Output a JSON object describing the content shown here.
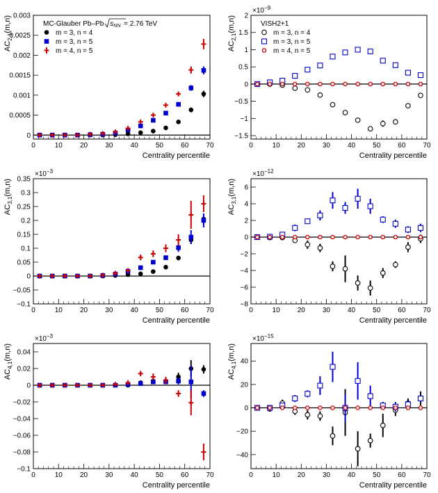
{
  "chart_data": [
    {
      "type": "scatter",
      "ylabel": "AC",
      "ylabel_sub": "2,1",
      "ylabel_suffix": "(m,n)",
      "xlabel": "Centrality percentile",
      "exponent": "",
      "xlim": [
        0,
        70
      ],
      "ylim": [
        -0.0001,
        0.003
      ],
      "yticks": [
        0,
        0.0005,
        0.001,
        0.0015,
        0.002,
        0.0025,
        0.003
      ],
      "ytick_labels": [
        "0",
        "0.0005",
        "0.001",
        "0.0015",
        "0.002",
        "0.0025",
        "0.003"
      ],
      "xticks": [
        0,
        10,
        20,
        30,
        40,
        50,
        60,
        70
      ],
      "xtick_labels": [
        "0",
        "10",
        "20",
        "30",
        "40",
        "50",
        "60",
        "70"
      ],
      "header": "MC-Glauber Pb–Pb",
      "energy_symbol": "s",
      "energy_sub": "NN",
      "energy_value": " = 2.76 TeV",
      "legend_position": "top-left",
      "x": [
        2.5,
        7.5,
        12.5,
        17.5,
        22.5,
        27.5,
        32.5,
        37.5,
        42.5,
        47.5,
        52.5,
        57.5,
        62.5,
        67.5
      ],
      "series": [
        {
          "name": "m = 3, n = 4",
          "marker": "filled-circle",
          "color": "#000000",
          "values": [
            0,
            0,
            0,
            0,
            0,
            0,
            1e-05,
            3e-05,
            6e-05,
            0.0001,
            0.00018,
            0.00033,
            0.00063,
            0.00103
          ],
          "errors": [
            0,
            0,
            0,
            0,
            0,
            0,
            0,
            0,
            0,
            0,
            0,
            3e-05,
            6e-05,
            8e-05
          ]
        },
        {
          "name": "m = 3, n = 5",
          "marker": "filled-square",
          "color": "#0000cc",
          "values": [
            0,
            0,
            0,
            0,
            1e-05,
            2e-05,
            5e-05,
            0.00013,
            0.00023,
            0.00037,
            0.00055,
            0.00077,
            0.00118,
            0.00162
          ],
          "errors": [
            0,
            0,
            0,
            0,
            0,
            0,
            0,
            0,
            1e-05,
            2e-05,
            3e-05,
            4e-05,
            7e-05,
            0.0001
          ]
        },
        {
          "name": "m = 4, n = 5",
          "marker": "cross",
          "color": "#cc0000",
          "values": [
            0,
            0,
            0,
            0,
            2e-05,
            4e-05,
            8e-05,
            0.00017,
            0.00033,
            0.0005,
            0.00075,
            0.00103,
            0.00163,
            0.00228
          ],
          "errors": [
            0,
            0,
            0,
            0,
            0,
            0,
            1e-05,
            1e-05,
            2e-05,
            3e-05,
            4e-05,
            5e-05,
            9e-05,
            0.00013
          ]
        }
      ]
    },
    {
      "type": "scatter",
      "ylabel": "AC",
      "ylabel_sub": "2,1",
      "ylabel_suffix": "(m,n)",
      "xlabel": "Centrality percentile",
      "exponent": "×10",
      "exponent_power": "−9",
      "xlim": [
        0,
        70
      ],
      "ylim": [
        -1.6,
        2
      ],
      "yticks": [
        -1.5,
        -1,
        -0.5,
        0,
        0.5,
        1,
        1.5,
        2
      ],
      "ytick_labels": [
        "−1.5",
        "−1",
        "−0.5",
        "0",
        "0.5",
        "1",
        "1.5",
        "2"
      ],
      "xticks": [
        0,
        10,
        20,
        30,
        40,
        50,
        60,
        70
      ],
      "xtick_labels": [
        "0",
        "10",
        "20",
        "30",
        "40",
        "50",
        "60",
        "70"
      ],
      "header": "VISH2+1",
      "legend_position": "top-left",
      "x": [
        2.5,
        7.5,
        12.5,
        17.5,
        22.5,
        27.5,
        32.5,
        37.5,
        42.5,
        47.5,
        52.5,
        57.5,
        62.5,
        67.5
      ],
      "series": [
        {
          "name": "m = 3, n = 4",
          "marker": "open-circle",
          "color": "#000000",
          "values": [
            0,
            0,
            -0.03,
            -0.12,
            -0.17,
            -0.32,
            -0.6,
            -0.83,
            -1.05,
            -1.3,
            -1.15,
            -1.1,
            -0.63,
            -0.33
          ],
          "errors": [
            0,
            0,
            0,
            0,
            0.03,
            0.03,
            0.04,
            0.07,
            0.05,
            0.07,
            0.09,
            0.05,
            0.03,
            0.02
          ]
        },
        {
          "name": "m = 3, n = 5",
          "marker": "open-square",
          "color": "#0000cc",
          "values": [
            0,
            0.05,
            0.1,
            0.24,
            0.42,
            0.54,
            0.8,
            0.92,
            1.0,
            0.95,
            0.68,
            0.55,
            0.33,
            0.26
          ],
          "errors": [
            0,
            0,
            0,
            0.02,
            0.02,
            0.03,
            0.04,
            0.04,
            0.07,
            0.07,
            0.03,
            0.04,
            0.03,
            0.02
          ]
        },
        {
          "name": "m = 4, n = 5",
          "marker": "open-cross",
          "color": "#cc0000",
          "values": [
            0,
            0,
            0,
            0,
            0,
            0,
            0,
            0,
            0,
            0,
            0,
            0,
            0,
            0
          ],
          "errors": [
            0,
            0,
            0,
            0,
            0,
            0,
            0,
            0,
            0,
            0,
            0,
            0,
            0,
            0
          ]
        }
      ]
    },
    {
      "type": "scatter",
      "ylabel": "AC",
      "ylabel_sub": "3,1",
      "ylabel_suffix": "(m,n)",
      "xlabel": "Centrality percentile",
      "exponent": "×10",
      "exponent_power": "−3",
      "xlim": [
        0,
        70
      ],
      "ylim": [
        -0.1,
        0.35
      ],
      "yticks": [
        -0.1,
        -0.05,
        0,
        0.05,
        0.1,
        0.15,
        0.2,
        0.25,
        0.3,
        0.35
      ],
      "ytick_labels": [
        "−0.1",
        "−0.05",
        "0",
        "0.05",
        "0.1",
        "0.15",
        "0.2",
        "0.25",
        "0.3",
        "0.35"
      ],
      "xticks": [
        0,
        10,
        20,
        30,
        40,
        50,
        60,
        70
      ],
      "xtick_labels": [
        "0",
        "10",
        "20",
        "30",
        "40",
        "50",
        "60",
        "70"
      ],
      "x": [
        2.5,
        7.5,
        12.5,
        17.5,
        22.5,
        27.5,
        32.5,
        37.5,
        42.5,
        47.5,
        52.5,
        57.5,
        62.5,
        67.5
      ],
      "series": [
        {
          "name": "m = 3, n = 4",
          "marker": "filled-circle",
          "color": "#000000",
          "values": [
            0,
            0,
            0,
            0,
            0,
            0,
            0.002,
            0.005,
            0.008,
            0.016,
            0.032,
            0.065,
            0.13,
            0.205
          ],
          "errors": [
            0,
            0,
            0,
            0,
            0,
            0,
            0,
            0,
            0,
            0,
            0.003,
            0.008,
            0.015,
            0.02
          ]
        },
        {
          "name": "m = 3, n = 5",
          "marker": "filled-square",
          "color": "#0000cc",
          "values": [
            0,
            0,
            0,
            0,
            0,
            0.002,
            0.007,
            0.017,
            0.03,
            0.05,
            0.066,
            0.102,
            0.14,
            0.2
          ],
          "errors": [
            0,
            0,
            0,
            0,
            0,
            0,
            0.002,
            0.003,
            0.004,
            0.006,
            0.008,
            0.015,
            0.025,
            0.025
          ]
        },
        {
          "name": "m = 4, n = 5",
          "marker": "cross",
          "color": "#cc0000",
          "values": [
            0,
            0,
            0,
            0,
            0,
            0.003,
            0.01,
            0.02,
            0.067,
            0.08,
            0.1,
            0.13,
            0.22,
            0.26
          ],
          "errors": [
            0,
            0,
            0,
            0,
            0,
            0.002,
            0.005,
            0.007,
            0.01,
            0.012,
            0.014,
            0.02,
            0.05,
            0.03
          ]
        }
      ]
    },
    {
      "type": "scatter",
      "ylabel": "AC",
      "ylabel_sub": "3,1",
      "ylabel_suffix": "(m,n)",
      "xlabel": "Centrality percentile",
      "exponent": "×10",
      "exponent_power": "−12",
      "xlim": [
        0,
        70
      ],
      "ylim": [
        -8,
        7
      ],
      "yticks": [
        -8,
        -6,
        -4,
        -2,
        0,
        2,
        4,
        6
      ],
      "ytick_labels": [
        "−8",
        "−6",
        "−4",
        "−2",
        "0",
        "2",
        "4",
        "6"
      ],
      "xticks": [
        0,
        10,
        20,
        30,
        40,
        50,
        60,
        70
      ],
      "xtick_labels": [
        "0",
        "10",
        "20",
        "30",
        "40",
        "50",
        "60",
        "70"
      ],
      "x": [
        2.5,
        7.5,
        12.5,
        17.5,
        22.5,
        27.5,
        32.5,
        37.5,
        42.5,
        47.5,
        52.5,
        57.5,
        62.5,
        67.5
      ],
      "series": [
        {
          "name": "m = 3, n = 4",
          "marker": "open-circle",
          "color": "#000000",
          "values": [
            0,
            -0.05,
            -0.05,
            -0.4,
            -0.9,
            -1.3,
            -3.5,
            -3.8,
            -5.5,
            -6.1,
            -4.3,
            -3.3,
            -1.2,
            -0.2
          ],
          "errors": [
            0,
            0,
            0,
            0.2,
            0.5,
            0.5,
            0.6,
            1.6,
            0.9,
            0.9,
            0.6,
            0.4,
            0.6,
            0.5
          ]
        },
        {
          "name": "m = 3, n = 5",
          "marker": "open-square",
          "color": "#0000cc",
          "values": [
            0,
            0.05,
            0.3,
            1.1,
            1.9,
            2.6,
            4.4,
            3.5,
            4.6,
            3.7,
            2.1,
            1.6,
            0.9,
            1.1
          ],
          "errors": [
            0,
            0,
            0.2,
            0.4,
            0.3,
            0.6,
            1.0,
            0.7,
            1.2,
            0.9,
            0.4,
            0.5,
            0.4,
            0.5
          ]
        },
        {
          "name": "m = 4, n = 5",
          "marker": "open-cross",
          "color": "#cc0000",
          "values": [
            0,
            0,
            0,
            0,
            0,
            0,
            0,
            0,
            0,
            0,
            0,
            0,
            0,
            0
          ],
          "errors": [
            0,
            0,
            0,
            0,
            0,
            0,
            0,
            0,
            0,
            0,
            0,
            0,
            0,
            0
          ]
        }
      ]
    },
    {
      "type": "scatter",
      "ylabel": "AC",
      "ylabel_sub": "4,1",
      "ylabel_suffix": "(m,n)",
      "xlabel": "Centrality percentile",
      "exponent": "×10",
      "exponent_power": "−3",
      "xlim": [
        0,
        70
      ],
      "ylim": [
        -0.1,
        0.05
      ],
      "yticks": [
        -0.1,
        -0.08,
        -0.06,
        -0.04,
        -0.02,
        0,
        0.02,
        0.04
      ],
      "ytick_labels": [
        "−0.1",
        "−0.08",
        "−0.06",
        "−0.04",
        "−0.02",
        "0",
        "0.02",
        "0.04"
      ],
      "xticks": [
        0,
        10,
        20,
        30,
        40,
        50,
        60,
        70
      ],
      "xtick_labels": [
        "0",
        "10",
        "20",
        "30",
        "40",
        "50",
        "60",
        "70"
      ],
      "x": [
        2.5,
        7.5,
        12.5,
        17.5,
        22.5,
        27.5,
        32.5,
        37.5,
        42.5,
        47.5,
        52.5,
        57.5,
        62.5,
        67.5
      ],
      "series": [
        {
          "name": "m = 3, n = 4",
          "marker": "filled-circle",
          "color": "#000000",
          "values": [
            0,
            0,
            0,
            0,
            0,
            0,
            0,
            0,
            0.003,
            0.005,
            0.005,
            0.01,
            0.02,
            0.019
          ],
          "errors": [
            0,
            0,
            0,
            0,
            0,
            0,
            0,
            0,
            0.001,
            0.002,
            0.002,
            0.005,
            0.01,
            0.005
          ]
        },
        {
          "name": "m = 3, n = 5",
          "marker": "filled-square",
          "color": "#0000cc",
          "values": [
            0,
            0,
            0,
            0,
            0,
            0,
            0,
            0.001,
            0.002,
            0.004,
            0.004,
            0.005,
            0.004,
            -0.01
          ],
          "errors": [
            0,
            0,
            0,
            0,
            0,
            0,
            0,
            0,
            0.001,
            0.002,
            0.002,
            0.004,
            0.02,
            0.004
          ]
        },
        {
          "name": "m = 4, n = 5",
          "marker": "cross",
          "color": "#cc0000",
          "values": [
            0,
            0,
            0,
            0,
            0,
            0,
            0.001,
            0.003,
            0.014,
            0.01,
            0.006,
            -0.01,
            -0.021,
            -0.08
          ],
          "errors": [
            0,
            0,
            0,
            0,
            0,
            0,
            0.001,
            0.002,
            0.003,
            0.004,
            0.004,
            0.004,
            0.015,
            0.01
          ]
        }
      ]
    },
    {
      "type": "scatter",
      "ylabel": "AC",
      "ylabel_sub": "4,1",
      "ylabel_suffix": "(m,n)",
      "xlabel": "Centrality percentile",
      "exponent": "×10",
      "exponent_power": "−15",
      "xlim": [
        0,
        70
      ],
      "ylim": [
        -52,
        55
      ],
      "yticks": [
        -40,
        -20,
        0,
        20,
        40
      ],
      "ytick_labels": [
        "−40",
        "−20",
        "0",
        "20",
        "40"
      ],
      "xticks": [
        0,
        10,
        20,
        30,
        40,
        50,
        60,
        70
      ],
      "xtick_labels": [
        "0",
        "10",
        "20",
        "30",
        "40",
        "50",
        "60",
        "70"
      ],
      "x": [
        2.5,
        7.5,
        12.5,
        17.5,
        22.5,
        27.5,
        32.5,
        37.5,
        42.5,
        47.5,
        52.5,
        57.5,
        62.5,
        67.5
      ],
      "series": [
        {
          "name": "m = 3, n = 4",
          "marker": "open-circle",
          "color": "#000000",
          "values": [
            0,
            -1,
            4,
            -3,
            -6,
            -7,
            -24,
            -4,
            -35,
            -28,
            -15,
            -2,
            4,
            8
          ],
          "errors": [
            0,
            0,
            3,
            3,
            4,
            4,
            8,
            20,
            15,
            6,
            10,
            5,
            4,
            6
          ]
        },
        {
          "name": "m = 3, n = 5",
          "marker": "open-square",
          "color": "#0000cc",
          "values": [
            0,
            0,
            2,
            8,
            12,
            19,
            35,
            0,
            23,
            10,
            2,
            1,
            3,
            8
          ],
          "errors": [
            0,
            0,
            1,
            3,
            3,
            8,
            13,
            12,
            16,
            9,
            3,
            4,
            3,
            3
          ]
        },
        {
          "name": "m = 4, n = 5",
          "marker": "open-cross",
          "color": "#cc0000",
          "values": [
            0,
            0,
            0,
            0,
            0,
            0,
            0,
            0,
            0,
            0,
            0,
            0,
            0,
            0
          ],
          "errors": [
            0,
            0,
            0,
            0,
            0,
            0,
            0,
            0,
            0,
            0,
            0,
            0,
            0,
            0
          ]
        }
      ]
    }
  ]
}
